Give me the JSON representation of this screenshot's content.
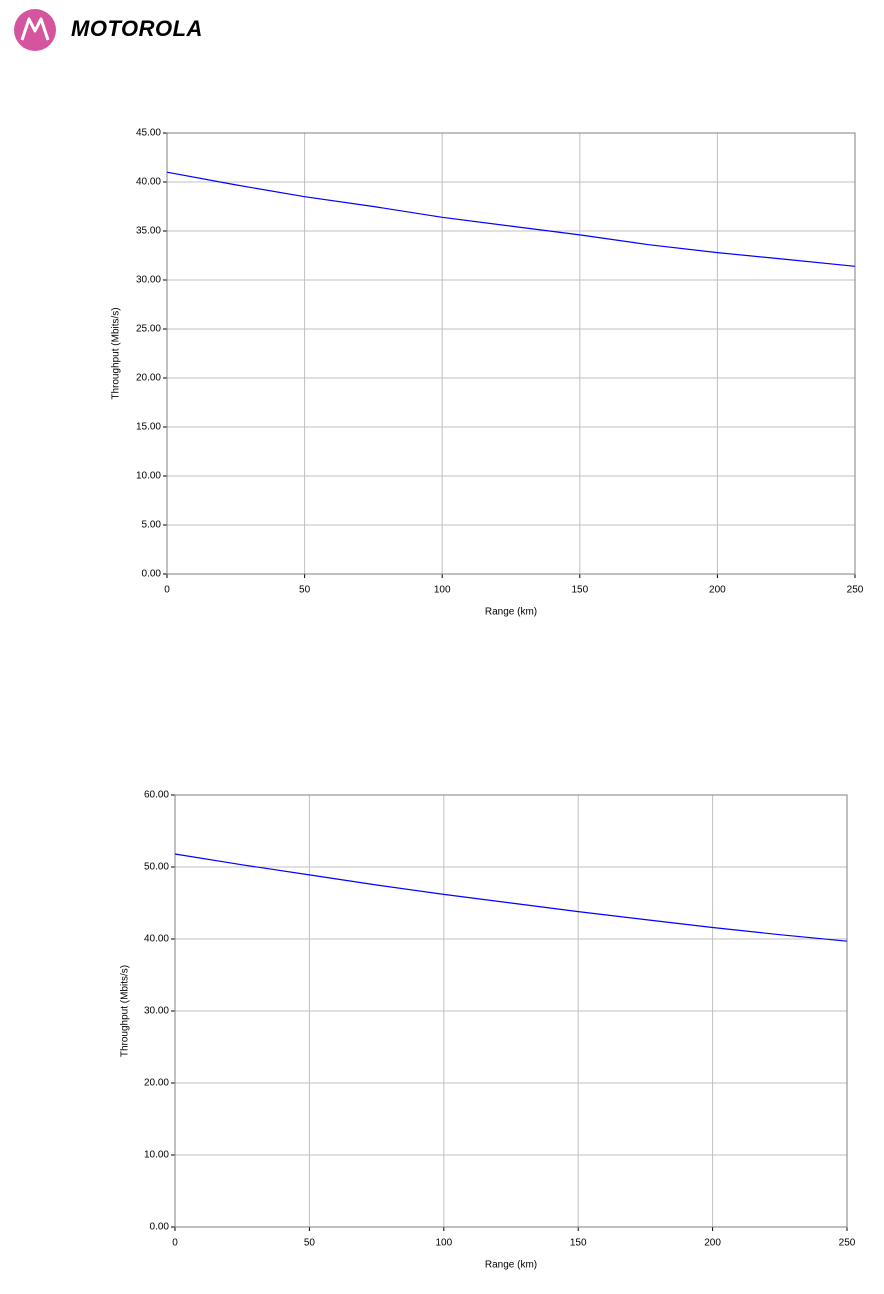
{
  "header": {
    "logo": "MOTOROLA"
  },
  "chart_data": [
    {
      "type": "line",
      "ylabel": "Throughput (Mbits/s)",
      "xlabel": "Range (km)",
      "x": [
        0,
        25,
        50,
        75,
        100,
        125,
        150,
        175,
        200,
        225,
        250
      ],
      "values": [
        41.0,
        39.7,
        38.5,
        37.5,
        36.4,
        35.5,
        34.6,
        33.6,
        32.8,
        32.1,
        31.4
      ],
      "color": "#0000ff",
      "xlim": [
        0,
        250
      ],
      "xticks": [
        0,
        50,
        100,
        150,
        200,
        250
      ],
      "ylim": [
        0,
        45
      ],
      "yticks": [
        {
          "value": 0,
          "label": "0.00"
        },
        {
          "value": 5,
          "label": "5.00"
        },
        {
          "value": 10,
          "label": "10.00"
        },
        {
          "value": 15,
          "label": "15.00"
        },
        {
          "value": 20,
          "label": "20.00"
        },
        {
          "value": 25,
          "label": "25.00"
        },
        {
          "value": 30,
          "label": "30.00"
        },
        {
          "value": 35,
          "label": "35.00"
        },
        {
          "value": 40,
          "label": "40.00"
        },
        {
          "value": 45,
          "label": "45.00"
        }
      ],
      "grid": true
    },
    {
      "type": "line",
      "ylabel": "Throughput (Mbits/s)",
      "xlabel": "Range (km)",
      "x": [
        0,
        25,
        50,
        75,
        100,
        125,
        150,
        175,
        200,
        225,
        250
      ],
      "values": [
        51.8,
        50.3,
        48.9,
        47.5,
        46.2,
        45.0,
        43.8,
        42.7,
        41.6,
        40.6,
        39.7
      ],
      "color": "#0000ff",
      "xlim": [
        0,
        250
      ],
      "xticks": [
        0,
        50,
        100,
        150,
        200,
        250
      ],
      "ylim": [
        0,
        60
      ],
      "yticks": [
        {
          "value": 0,
          "label": "0.00"
        },
        {
          "value": 10,
          "label": "10.00"
        },
        {
          "value": 20,
          "label": "20.00"
        },
        {
          "value": 30,
          "label": "30.00"
        },
        {
          "value": 40,
          "label": "40.00"
        },
        {
          "value": 50,
          "label": "50.00"
        },
        {
          "value": 60,
          "label": "60.00"
        }
      ],
      "grid": true
    }
  ]
}
